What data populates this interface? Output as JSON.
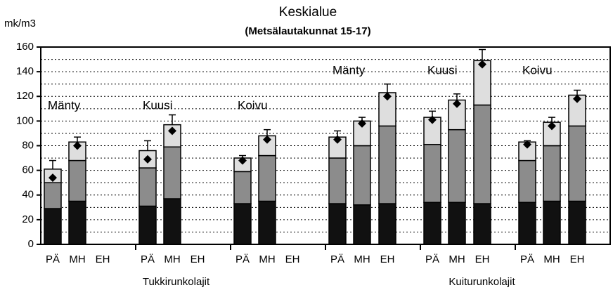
{
  "chart_data": {
    "type": "bar",
    "stacked": true,
    "title": "Keskialue",
    "subtitle": "(Metsälautakunnat 15-17)",
    "y_label": "mk/m3",
    "categories": [
      "PÄ",
      "MH",
      "EH",
      "PÄ",
      "MH",
      "EH",
      "PÄ",
      "MH",
      "EH",
      "PÄ",
      "MH",
      "EH",
      "PÄ",
      "MH",
      "EH",
      "PÄ",
      "MH",
      "EH"
    ],
    "group_labels": [
      "Mänty",
      "Kuusi",
      "Koivu",
      "Mänty",
      "Kuusi",
      "Koivu"
    ],
    "sections": [
      "Tukkirunkolajit",
      "Kuiturunkolajit"
    ],
    "series": [
      {
        "color": "#111111",
        "values": [
          29,
          35,
          null,
          31,
          37,
          null,
          33,
          35,
          null,
          33,
          32,
          33,
          34,
          34,
          33,
          34,
          35,
          35
        ]
      },
      {
        "color": "#8c8c8c",
        "values": [
          21,
          33,
          null,
          31,
          42,
          null,
          26,
          37,
          null,
          37,
          48,
          63,
          47,
          59,
          80,
          34,
          45,
          61
        ]
      },
      {
        "color": "#dedede",
        "values": [
          11,
          15,
          null,
          14,
          18,
          null,
          11,
          16,
          null,
          17,
          20,
          27,
          22,
          24,
          36,
          15,
          19,
          25
        ]
      }
    ],
    "points": [
      54,
      80,
      null,
      69,
      92,
      null,
      68,
      85,
      null,
      85,
      98,
      120,
      101,
      114,
      146,
      81,
      96,
      118
    ],
    "upper": [
      68,
      87,
      null,
      84,
      105,
      null,
      72,
      93,
      null,
      92,
      103,
      130,
      108,
      122,
      158,
      84,
      103,
      125
    ],
    "ylim": [
      0,
      160
    ],
    "yticks": [
      0,
      20,
      40,
      60,
      80,
      100,
      120,
      140,
      160
    ],
    "minor_yticks": [
      10,
      30,
      50,
      70,
      90,
      110,
      130,
      150
    ],
    "grid": true
  }
}
